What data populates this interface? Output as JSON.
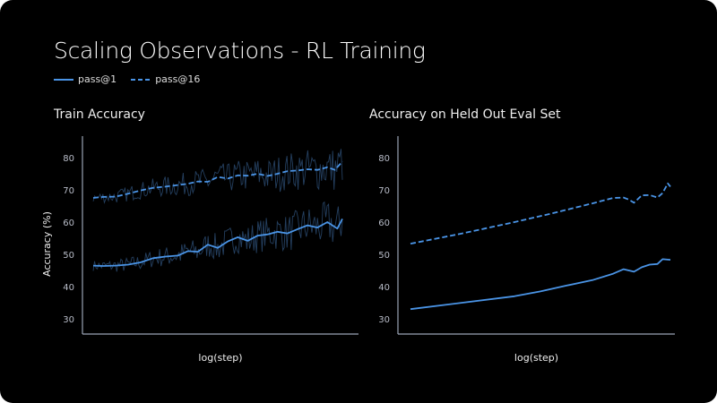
{
  "title": "Scaling Observations - RL Training",
  "legend": [
    {
      "name": "pass@1",
      "style": "solid"
    },
    {
      "name": "pass@16",
      "style": "dashed"
    }
  ],
  "colors": {
    "line": "#4a94e6",
    "raw": "#2a4a70",
    "axis": "#9aa3b5",
    "background": "#000000"
  },
  "chart_data": [
    {
      "type": "line",
      "title": "Train Accuracy",
      "xlabel": "log(step)",
      "ylabel": "Accuracy (%)",
      "yticks": [
        30,
        40,
        50,
        60,
        70,
        80
      ],
      "ylim": [
        25,
        86
      ],
      "xlim": [
        -0.04,
        1.1
      ],
      "grid": false,
      "series": [
        {
          "name": "pass@1",
          "style": "solid",
          "x": [
            0,
            0.04,
            0.09,
            0.14,
            0.19,
            0.24,
            0.29,
            0.34,
            0.38,
            0.42,
            0.46,
            0.5,
            0.54,
            0.58,
            0.62,
            0.66,
            0.7,
            0.74,
            0.78,
            0.82,
            0.86,
            0.9,
            0.94,
            0.98,
            1.0
          ],
          "y": [
            46.5,
            46.4,
            46.5,
            46.8,
            47.5,
            48.8,
            49.3,
            49.6,
            51,
            50.8,
            53,
            52,
            54,
            55.3,
            54.2,
            55.8,
            56.2,
            57,
            56.5,
            57.8,
            59,
            58.3,
            60,
            58,
            61
          ]
        },
        {
          "name": "pass@16",
          "style": "dashed",
          "x": [
            0,
            0.04,
            0.09,
            0.14,
            0.19,
            0.24,
            0.29,
            0.34,
            0.38,
            0.42,
            0.46,
            0.5,
            0.54,
            0.58,
            0.62,
            0.66,
            0.7,
            0.74,
            0.78,
            0.82,
            0.86,
            0.9,
            0.94,
            0.97,
            1.0
          ],
          "y": [
            67.5,
            67.8,
            67.9,
            68.8,
            69.8,
            70.6,
            71,
            71.5,
            71.9,
            72.6,
            72.5,
            74,
            73.5,
            74.5,
            74.4,
            75,
            74.3,
            75,
            75.8,
            76,
            76.4,
            76.2,
            77,
            76.2,
            78.8
          ]
        }
      ]
    },
    {
      "type": "line",
      "title": "Accuracy on Held Out Eval Set",
      "xlabel": "log(step)",
      "ylabel": "",
      "yticks": [
        30,
        40,
        50,
        60,
        70,
        80
      ],
      "ylim": [
        25,
        86
      ],
      "xlim": [
        -0.04,
        1.01
      ],
      "grid": false,
      "series": [
        {
          "name": "pass@1",
          "style": "solid",
          "x": [
            0,
            0.2,
            0.4,
            0.5,
            0.6,
            0.7,
            0.78,
            0.82,
            0.86,
            0.89,
            0.92,
            0.95,
            0.97,
            1.0
          ],
          "y": [
            33,
            35,
            37,
            38.5,
            40.3,
            42,
            44,
            45.4,
            44.6,
            46,
            46.8,
            47,
            48.5,
            48.3
          ]
        },
        {
          "name": "pass@16",
          "style": "dashed",
          "x": [
            0,
            0.2,
            0.4,
            0.55,
            0.7,
            0.78,
            0.82,
            0.84,
            0.86,
            0.89,
            0.92,
            0.95,
            0.97,
            0.99,
            1.0
          ],
          "y": [
            53.3,
            56.5,
            60,
            62.8,
            65.8,
            67.5,
            67.6,
            67,
            66,
            68.3,
            68.4,
            67.6,
            69,
            72,
            71
          ]
        }
      ]
    }
  ]
}
